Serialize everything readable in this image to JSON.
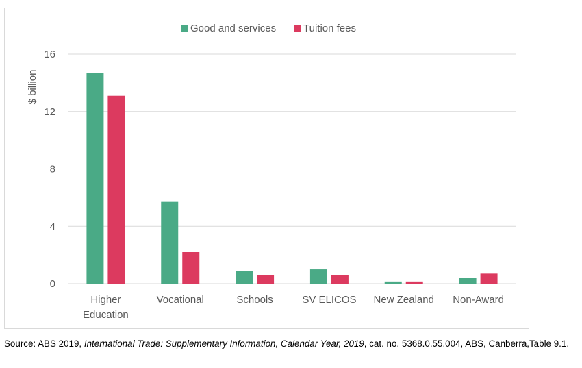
{
  "chart_data": {
    "type": "bar",
    "title": "",
    "xlabel": "",
    "ylabel": "$ billion",
    "ylim": [
      0,
      16
    ],
    "yticks": [
      0,
      4,
      8,
      12,
      16
    ],
    "grid": true,
    "legend_position": "top-center",
    "categories": [
      [
        "Higher",
        "Education"
      ],
      [
        "Vocational"
      ],
      [
        "Schools"
      ],
      [
        "SV ELICOS"
      ],
      [
        "New Zealand"
      ],
      [
        "Non-Award"
      ]
    ],
    "series": [
      {
        "name": "Good and services",
        "color": "#4aaa86",
        "values": [
          14.7,
          5.7,
          0.9,
          1.0,
          0.15,
          0.4
        ]
      },
      {
        "name": "Tuition fees",
        "color": "#dc3a5f",
        "values": [
          13.1,
          2.2,
          0.6,
          0.6,
          0.15,
          0.7
        ]
      }
    ]
  },
  "source": {
    "prefix": "Source: ABS 2019, ",
    "title_italic": "International Trade: Supplementary Information, Calendar Year, 2019",
    "suffix": ", cat. no. 5368.0.55.004, ABS, Canberra,Table 9.1."
  }
}
